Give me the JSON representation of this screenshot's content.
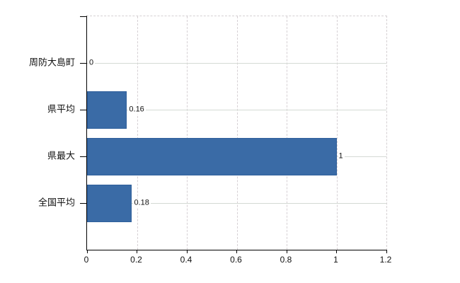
{
  "chart_data": {
    "type": "bar",
    "orientation": "horizontal",
    "title": "",
    "categories": [
      "周防大島町",
      "県平均",
      "県最大",
      "全国平均"
    ],
    "values": [
      0,
      0.16,
      1,
      0.18
    ],
    "data_labels": [
      "0",
      "0.16",
      "1",
      "0.18"
    ],
    "xlim": [
      0,
      1.2
    ],
    "x_ticks": [
      0,
      0.2,
      0.4,
      0.6,
      0.8,
      1,
      1.2
    ],
    "x_tick_labels": [
      "0",
      "0.2",
      "0.4",
      "0.6",
      "0.8",
      "1",
      "1.2"
    ],
    "grid": true,
    "legend": false,
    "colors": {
      "bar_fill": "#3a6ba6",
      "bar_border": "#2f5f9b",
      "axis": "#000000",
      "gridline_horizontal": "#d4dad4",
      "gridline_vertical": "#d6d0d4",
      "text": "#111111",
      "background": "#ffffff"
    }
  }
}
